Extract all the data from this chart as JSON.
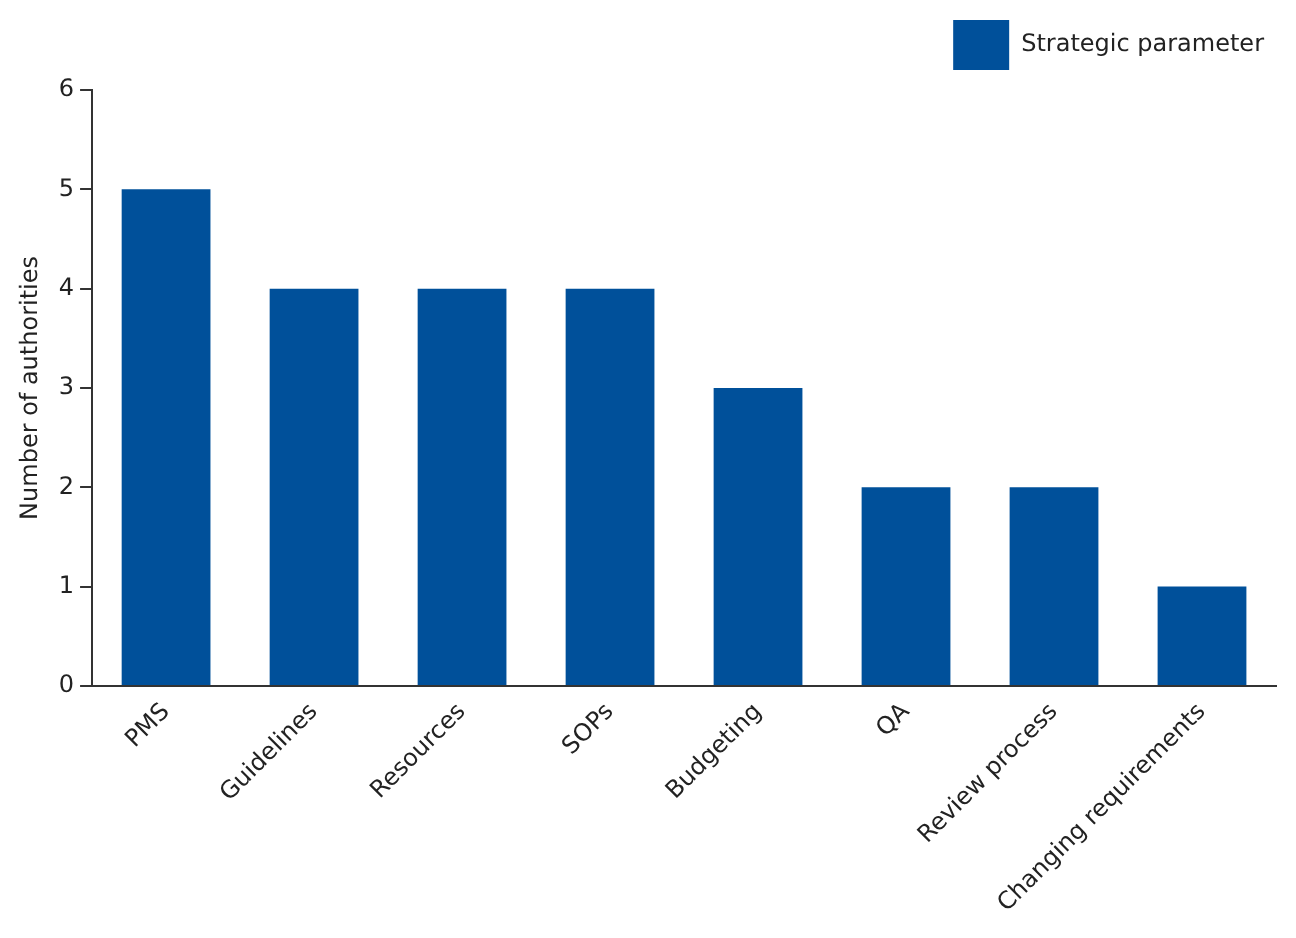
{
  "chart_data": {
    "type": "bar",
    "ylabel": "Number of authorities",
    "categories": [
      "PMS",
      "Guidelines",
      "Resources",
      "SOPs",
      "Budgeting",
      "QA",
      "Review process",
      "Changing requirements"
    ],
    "series": [
      {
        "name": "Strategic parameter",
        "color": "#00509a",
        "values": [
          5,
          4,
          4,
          4,
          3,
          2,
          2,
          1
        ]
      }
    ],
    "ylim": [
      0,
      6
    ],
    "yticks": [
      0,
      1,
      2,
      3,
      4,
      5,
      6
    ],
    "grid": false,
    "legend": "top right"
  }
}
